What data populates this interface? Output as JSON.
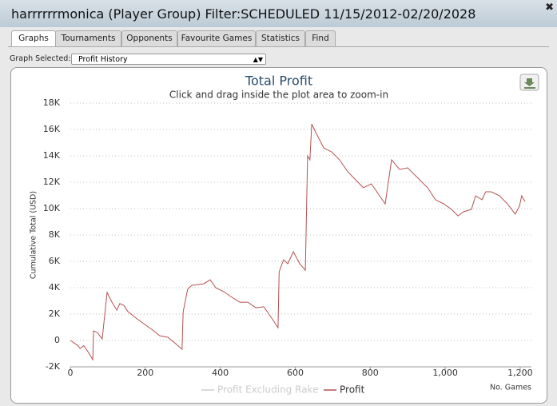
{
  "window": {
    "title": "harrrrrrmonica (Player Group) Filter:SCHEDULED 11/15/2012-02/20/2028"
  },
  "tabs": [
    "Graphs",
    "Tournaments",
    "Opponents",
    "Favourite Games",
    "Statistics",
    "Find"
  ],
  "graph_selector": {
    "label": "Graph Selected:",
    "value": "Profit History"
  },
  "chart_data": {
    "type": "line",
    "title": "Total Profit",
    "subtitle": "Click and drag inside the plot area to zoom-in",
    "y_label": "Cumulative Total (USD)",
    "x_label": "No. Games",
    "xlim": [
      0,
      1230
    ],
    "ylim": [
      -2000,
      18000
    ],
    "xticks": [
      0,
      200,
      400,
      600,
      800,
      {
        "value": 1000,
        "label": "1,000"
      },
      {
        "value": 1200,
        "label": "1,200"
      }
    ],
    "yticks": [
      {
        "value": -2000,
        "label": "-2K"
      },
      0,
      {
        "value": 2000,
        "label": "2K"
      },
      {
        "value": 4000,
        "label": "4K"
      },
      {
        "value": 6000,
        "label": "6K"
      },
      {
        "value": 8000,
        "label": "8K"
      },
      {
        "value": 10000,
        "label": "10K"
      },
      {
        "value": 12000,
        "label": "12K"
      },
      {
        "value": 14000,
        "label": "14K"
      },
      {
        "value": 16000,
        "label": "16K"
      },
      {
        "value": 18000,
        "label": "18K"
      }
    ],
    "grid": true,
    "legend": "bottom",
    "series": [
      {
        "name": "Profit Excluding Rake",
        "color": "#cccccc",
        "visible": false
      },
      {
        "name": "Profit",
        "color": "#b5514f",
        "visible": true,
        "x": [
          0,
          19,
          26,
          36,
          47,
          60,
          62,
          72,
          85,
          98,
          111,
          124,
          132,
          143,
          153,
          175,
          196,
          217,
          239,
          260,
          281,
          298,
          301,
          313,
          324,
          356,
          373,
          388,
          409,
          431,
          452,
          473,
          495,
          516,
          537,
          554,
          557,
          569,
          580,
          595,
          612,
          627,
          633,
          639,
          644,
          654,
          676,
          697,
          718,
          740,
          761,
          782,
          803,
          825,
          840,
          857,
          878,
          900,
          910,
          932,
          953,
          974,
          996,
          1017,
          1034,
          1049,
          1070,
          1081,
          1098,
          1108,
          1123,
          1145,
          1166,
          1187,
          1198,
          1204,
          1213
        ],
        "values": [
          0,
          -360,
          -600,
          -400,
          -850,
          -1450,
          730,
          600,
          120,
          3640,
          2900,
          2300,
          2800,
          2650,
          2200,
          1700,
          1270,
          850,
          360,
          240,
          -240,
          -670,
          2180,
          3880,
          4180,
          4300,
          4600,
          4000,
          3700,
          3270,
          2900,
          2900,
          2480,
          2550,
          1700,
          970,
          5200,
          6120,
          5820,
          6730,
          5820,
          5330,
          14000,
          13700,
          16420,
          15820,
          14600,
          14300,
          13700,
          12800,
          12180,
          11580,
          11880,
          10970,
          10360,
          13700,
          12970,
          13090,
          12800,
          12180,
          11580,
          10670,
          10360,
          9940,
          9450,
          9760,
          9940,
          10970,
          10670,
          11270,
          11270,
          10970,
          10360,
          9580,
          10180,
          10970,
          10540
        ]
      }
    ]
  }
}
